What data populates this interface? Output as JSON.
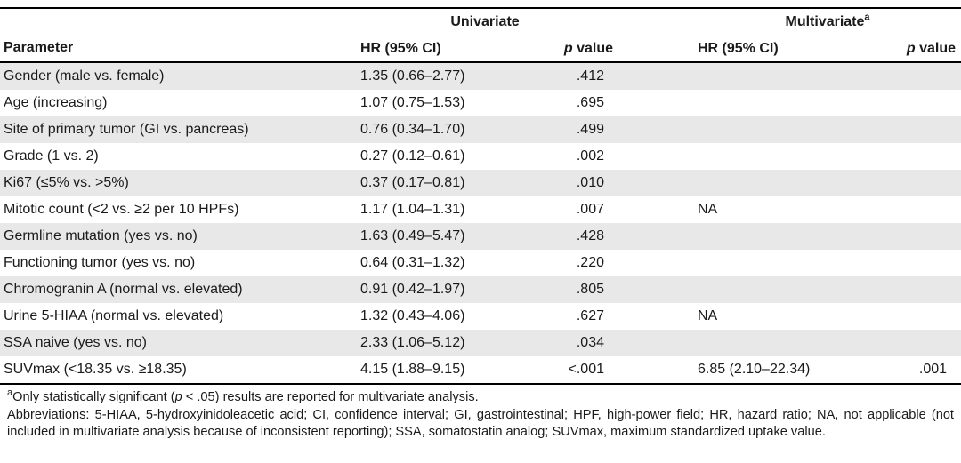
{
  "colors": {
    "row_shade": "#e8e8e8",
    "rule": "#000000",
    "text": "#1a1a1a"
  },
  "table": {
    "header": {
      "parameter": "Parameter",
      "univariate": "Univariate",
      "multivariate": "Multivariate",
      "multivariate_marker": "a",
      "hr_label": "HR (95% CI)",
      "p_label_italic": "p",
      "p_label_rest": " value"
    },
    "rows": [
      {
        "parameter": "Gender (male vs. female)",
        "uni_hr": "1.35 (0.66–2.77)",
        "uni_p": ".412",
        "multi_hr": "",
        "multi_p": ""
      },
      {
        "parameter": "Age (increasing)",
        "uni_hr": "1.07 (0.75–1.53)",
        "uni_p": ".695",
        "multi_hr": "",
        "multi_p": ""
      },
      {
        "parameter": "Site of primary tumor (GI vs. pancreas)",
        "uni_hr": "0.76 (0.34–1.70)",
        "uni_p": ".499",
        "multi_hr": "",
        "multi_p": ""
      },
      {
        "parameter": "Grade (1 vs. 2)",
        "uni_hr": "0.27 (0.12–0.61)",
        "uni_p": ".002",
        "multi_hr": "",
        "multi_p": ""
      },
      {
        "parameter": "Ki67 (≤5% vs. >5%)",
        "uni_hr": "0.37 (0.17–0.81)",
        "uni_p": ".010",
        "multi_hr": "",
        "multi_p": ""
      },
      {
        "parameter": "Mitotic count (<2 vs. ≥2 per 10 HPFs)",
        "uni_hr": "1.17 (1.04–1.31)",
        "uni_p": ".007",
        "multi_hr": "NA",
        "multi_p": ""
      },
      {
        "parameter": "Germline mutation (yes vs. no)",
        "uni_hr": "1.63 (0.49–5.47)",
        "uni_p": ".428",
        "multi_hr": "",
        "multi_p": ""
      },
      {
        "parameter": "Functioning tumor (yes vs. no)",
        "uni_hr": "0.64 (0.31–1.32)",
        "uni_p": ".220",
        "multi_hr": "",
        "multi_p": ""
      },
      {
        "parameter": "Chromogranin A (normal vs. elevated)",
        "uni_hr": "0.91 (0.42–1.97)",
        "uni_p": ".805",
        "multi_hr": "",
        "multi_p": ""
      },
      {
        "parameter": "Urine 5-HIAA (normal vs. elevated)",
        "uni_hr": "1.32 (0.43–4.06)",
        "uni_p": ".627",
        "multi_hr": "NA",
        "multi_p": ""
      },
      {
        "parameter": "SSA naive (yes vs. no)",
        "uni_hr": "2.33 (1.06–5.12)",
        "uni_p": ".034",
        "multi_hr": "",
        "multi_p": ""
      },
      {
        "parameter": "SUVmax (<18.35 vs. ≥18.35)",
        "uni_hr": "4.15 (1.88–9.15)",
        "uni_p": "<.001",
        "multi_hr": "6.85 (2.10–22.34)",
        "multi_p": ".001"
      }
    ]
  },
  "footnotes": {
    "marker": "a",
    "significance_pre": "Only statistically significant (",
    "significance_p": "p",
    "significance_post": " < .05) results are reported for multivariate analysis.",
    "abbreviations": "Abbreviations: 5-HIAA, 5-hydroxyinidoleacetic acid; CI, confidence interval; GI, gastrointestinal; HPF, high-power field; HR, hazard ratio; NA, not applicable (not included in multivariate analysis because of inconsistent reporting); SSA, somatostatin analog; SUVmax, maximum standardized uptake value."
  }
}
